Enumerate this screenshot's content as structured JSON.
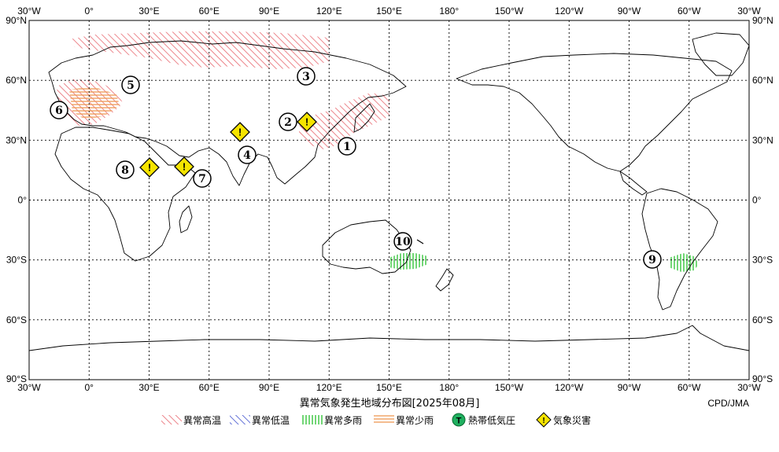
{
  "map": {
    "title": "異常気象発生地域分布図[2025年08月]",
    "credit": "CPD/JMA",
    "top_labels": [
      "30°W",
      "0°",
      "30°E",
      "60°E",
      "90°E",
      "120°E",
      "150°E",
      "180°",
      "150°W",
      "120°W",
      "90°W",
      "60°W",
      "30°W"
    ],
    "bottom_labels": [
      "30°W",
      "0°",
      "30°E",
      "60°E",
      "90°E",
      "120°E",
      "150°E",
      "180°",
      "150°W",
      "120°W",
      "90°W",
      "60°W",
      "30°W"
    ],
    "lat_labels": [
      "90°N",
      "60°N",
      "30°N",
      "0°",
      "30°S",
      "60°S",
      "90°S"
    ],
    "colors": {
      "heat": "#e8676f",
      "cold": "#3a4ccc",
      "wet": "#36c43c",
      "dry": "#f0a060",
      "cyclone": "#20b060",
      "disaster": "#f5e400"
    }
  },
  "events": [
    {
      "label": "1"
    },
    {
      "label": "2"
    },
    {
      "label": "3"
    },
    {
      "label": "4"
    },
    {
      "label": "5"
    },
    {
      "label": "6"
    },
    {
      "label": "7"
    },
    {
      "label": "8"
    },
    {
      "label": "9"
    },
    {
      "label": "10"
    }
  ],
  "disasters": [
    {
      "symbol": "!"
    },
    {
      "symbol": "!"
    },
    {
      "symbol": "!"
    },
    {
      "symbol": "!"
    }
  ],
  "legend": {
    "heat": "異常高温",
    "cold": "異常低温",
    "wet": "異常多雨",
    "dry": "異常少雨",
    "cyclone": "熱帯低気圧",
    "cyclone_symbol": "T",
    "disaster": "気象災害",
    "disaster_symbol": "!"
  }
}
